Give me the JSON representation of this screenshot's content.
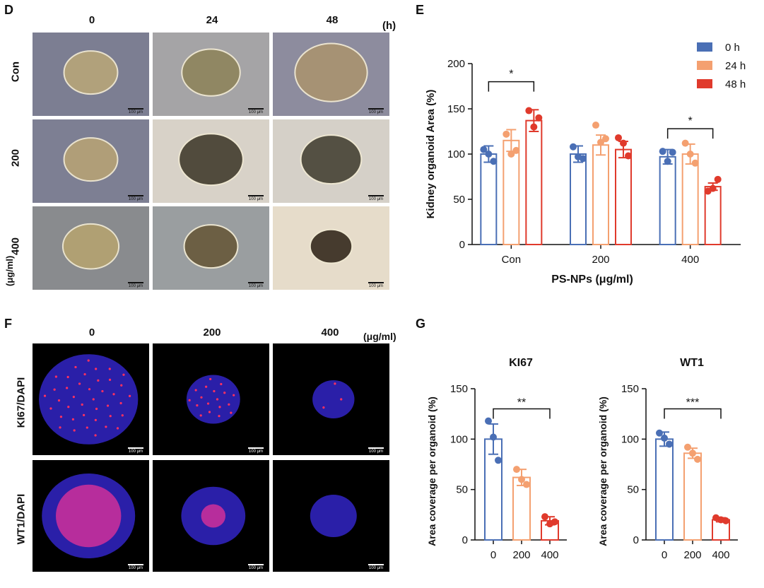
{
  "panel_d": {
    "letter": "D",
    "col_labels": [
      "0",
      "24",
      "48"
    ],
    "unit": "(h)",
    "row_labels": [
      "Con",
      "200",
      "400"
    ],
    "row_unit": "(μg/ml)",
    "scale_bar": "100 μm"
  },
  "panel_f": {
    "letter": "F",
    "col_labels": [
      "0",
      "200",
      "400"
    ],
    "unit": "(μg/ml)",
    "row_labels": [
      "KI67/DAPI",
      "WT1/DAPI"
    ],
    "scale_bar": "100 μm"
  },
  "colors": {
    "h0": "#4a6fb5",
    "h24": "#f4a070",
    "h48": "#e03a2c"
  },
  "chart_data": [
    {
      "panel": "E",
      "type": "bar",
      "categories": [
        "Con",
        "200",
        "400"
      ],
      "series": [
        {
          "name": "0 h",
          "values": [
            100,
            100,
            97
          ],
          "errors": [
            9,
            9,
            8
          ],
          "points": [
            [
              105,
              100,
              92
            ],
            [
              108,
              97,
              95
            ],
            [
              103,
              92,
              102
            ]
          ]
        },
        {
          "name": "24 h",
          "values": [
            115,
            110,
            100
          ],
          "errors": [
            12,
            11,
            11
          ],
          "points": [
            [
              122,
              100,
              104
            ],
            [
              132,
              113,
              117
            ],
            [
              112,
              100,
              90
            ]
          ]
        },
        {
          "name": "48 h",
          "values": [
            137,
            105,
            64
          ],
          "errors": [
            12,
            9,
            4
          ],
          "points": [
            [
              148,
              130,
              140
            ],
            [
              118,
              112,
              98
            ],
            [
              59,
              62,
              72
            ]
          ]
        }
      ],
      "series_names": [
        "0 h",
        "24 h",
        "48 h"
      ],
      "title": "",
      "xlabel": "PS-NPs (μg/ml)",
      "ylabel": "Kidney organoid Area (%)",
      "ylim": [
        0,
        200
      ],
      "yticks": [
        "0",
        "50",
        "100",
        "150",
        "200"
      ],
      "annotations": [
        {
          "text": "*",
          "from": "Con / 0 h",
          "to": "Con / 48 h"
        },
        {
          "text": "*",
          "from": "400 / 0 h",
          "to": "400 / 48 h"
        }
      ],
      "legend": "top-right"
    },
    {
      "panel": "G",
      "type": "bar",
      "title": "KI67",
      "categories": [
        "0",
        "200",
        "400"
      ],
      "values": [
        100,
        62,
        19
      ],
      "errors": [
        15,
        8,
        4
      ],
      "points": [
        [
          118,
          102,
          79
        ],
        [
          70,
          60,
          55
        ],
        [
          23,
          16,
          18
        ]
      ],
      "ylabel": "Area coverage per organoid (%)",
      "ylim": [
        0,
        150
      ],
      "yticks": [
        "0",
        "50",
        "100",
        "150"
      ],
      "annotation": {
        "text": "**",
        "from": "0",
        "to": "400"
      }
    },
    {
      "panel": "G",
      "type": "bar",
      "title": "WT1",
      "categories": [
        "0",
        "200",
        "400"
      ],
      "values": [
        100,
        86,
        20
      ],
      "errors": [
        7,
        5,
        2
      ],
      "points": [
        [
          106,
          101,
          95
        ],
        [
          92,
          86,
          80
        ],
        [
          22,
          20,
          19
        ]
      ],
      "ylabel": "Area coverage per organoid (%)",
      "ylim": [
        0,
        150
      ],
      "yticks": [
        "0",
        "50",
        "100",
        "150"
      ],
      "annotation": {
        "text": "***",
        "from": "0",
        "to": "400"
      }
    }
  ],
  "panel_e_letter": "E",
  "panel_g_letter": "G"
}
